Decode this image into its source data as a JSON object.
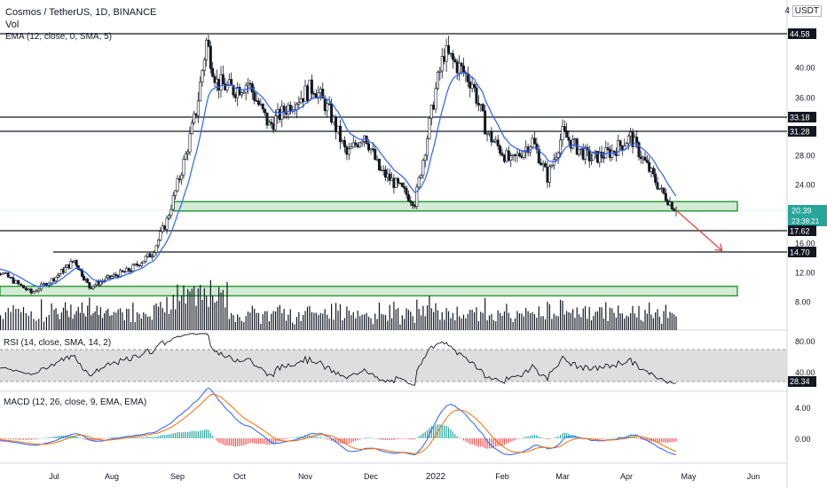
{
  "header": {
    "symbol_title": "Cosmos / TetherUS, 1D, BINANCE",
    "volume_label": "Vol",
    "ema_label": "EMA (12, close, 0, SMA, 5)",
    "currency": "USDT",
    "currency_prefix": "4"
  },
  "rsi_label": "RSI (14, close, SMA, 14, 2)",
  "macd_label": "MACD (12, 26, close, 9, EMA, EMA)",
  "colors": {
    "up": "#26a69a",
    "down": "#ef5350",
    "candle": "#131722",
    "ema": "#2962ff",
    "zone_fill": "#c8e6c9",
    "zone_border": "#2e9e3a",
    "macd_line": "#2962ff",
    "signal_line": "#ff6d00",
    "rsi_band": "#d6d6d6"
  },
  "chart_data": [
    {
      "type": "candlestick",
      "title": "Cosmos / TetherUS, 1D, BINANCE",
      "y_ticks": [
        "44.58",
        "40.00",
        "36.00",
        "33.18",
        "31.28",
        "28.00",
        "24.00",
        "20.39",
        "17.62",
        "16.00",
        "14.70",
        "12.00",
        "8.00"
      ],
      "x_ticks": [
        "Jul",
        "Aug",
        "Sep",
        "Oct",
        "Nov",
        "Dec",
        "2022",
        "Feb",
        "Mar",
        "Apr",
        "May",
        "Jun"
      ],
      "ylim": [
        5.5,
        48
      ],
      "current_price": "20.39",
      "countdown": "23:38:21",
      "horizontal_levels": [
        44.58,
        33.18,
        31.28,
        17.62,
        14.7
      ],
      "level_labels": [
        "44.58",
        "33.18",
        "31.28",
        "17.62",
        "14.70"
      ],
      "support_zones": [
        [
          20.3,
          21.6
        ],
        [
          8.8,
          10.1
        ]
      ],
      "close_path": [
        {
          "date": "2021-06-01",
          "close": 13.2
        },
        {
          "date": "2021-06-10",
          "close": 12.0
        },
        {
          "date": "2021-06-22",
          "close": 9.2
        },
        {
          "date": "2021-07-01",
          "close": 11.2
        },
        {
          "date": "2021-07-12",
          "close": 13.6
        },
        {
          "date": "2021-07-20",
          "close": 10.0
        },
        {
          "date": "2021-08-01",
          "close": 11.4
        },
        {
          "date": "2021-08-10",
          "close": 12.4
        },
        {
          "date": "2021-08-20",
          "close": 14.5
        },
        {
          "date": "2021-08-27",
          "close": 19.0
        },
        {
          "date": "2021-09-05",
          "close": 28.0
        },
        {
          "date": "2021-09-10",
          "close": 34.0
        },
        {
          "date": "2021-09-15",
          "close": 43.5
        },
        {
          "date": "2021-09-20",
          "close": 38.0
        },
        {
          "date": "2021-09-28",
          "close": 37.0
        },
        {
          "date": "2021-10-05",
          "close": 38.0
        },
        {
          "date": "2021-10-15",
          "close": 32.0
        },
        {
          "date": "2021-10-25",
          "close": 35.0
        },
        {
          "date": "2021-11-05",
          "close": 37.5
        },
        {
          "date": "2021-11-12",
          "close": 34.0
        },
        {
          "date": "2021-11-20",
          "close": 28.0
        },
        {
          "date": "2021-11-28",
          "close": 31.0
        },
        {
          "date": "2021-12-05",
          "close": 26.0
        },
        {
          "date": "2021-12-15",
          "close": 23.5
        },
        {
          "date": "2021-12-22",
          "close": 21.5
        },
        {
          "date": "2021-12-27",
          "close": 29.0
        },
        {
          "date": "2022-01-01",
          "close": 37.0
        },
        {
          "date": "2022-01-05",
          "close": 42.0
        },
        {
          "date": "2022-01-12",
          "close": 40.0
        },
        {
          "date": "2022-01-18",
          "close": 38.0
        },
        {
          "date": "2022-01-25",
          "close": 31.0
        },
        {
          "date": "2022-02-05",
          "close": 27.0
        },
        {
          "date": "2022-02-15",
          "close": 30.0
        },
        {
          "date": "2022-02-22",
          "close": 25.0
        },
        {
          "date": "2022-03-01",
          "close": 31.0
        },
        {
          "date": "2022-03-08",
          "close": 29.0
        },
        {
          "date": "2022-03-15",
          "close": 27.5
        },
        {
          "date": "2022-03-25",
          "close": 28.5
        },
        {
          "date": "2022-04-03",
          "close": 30.5
        },
        {
          "date": "2022-04-10",
          "close": 27.0
        },
        {
          "date": "2022-04-18",
          "close": 23.0
        },
        {
          "date": "2022-04-25",
          "close": 20.39
        }
      ],
      "projection": {
        "from": {
          "date": "2022-04-25",
          "value": 20.39
        },
        "to": {
          "date": "2022-05-17",
          "value": 14.9
        }
      }
    },
    {
      "type": "line",
      "title": "RSI (14, close, SMA, 14, 2)",
      "y_ticks": [
        "80.00",
        "40.00"
      ],
      "last_value": "28.34",
      "band": [
        30,
        70
      ]
    },
    {
      "type": "line",
      "title": "MACD (12, 26, close, 9, EMA, EMA)",
      "y_ticks": [
        "4.00",
        "0.00"
      ]
    }
  ]
}
